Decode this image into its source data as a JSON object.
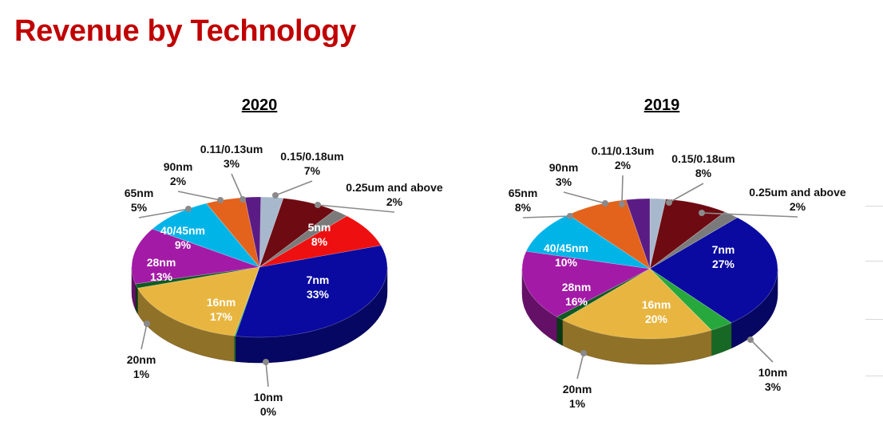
{
  "page_title": "Revenue by Technology",
  "colors": {
    "title": "#c00000",
    "0.11/0.13um": "#a7b8cc",
    "0.15/0.18um": "#6e0a12",
    "0.25um and above": "#7a7a7a",
    "5nm": "#ee1010",
    "7nm": "#0a0aa0",
    "10nm": "#27a83c",
    "16nm": "#e8b640",
    "20nm": "#0e5a22",
    "28nm": "#a31aa6",
    "40/45nm": "#00b4e8",
    "65nm": "#e3621c",
    "90nm": "#5a1c84"
  },
  "chart_data": [
    {
      "type": "pie",
      "title": "2020",
      "slices": [
        {
          "label": "0.11/0.13um",
          "value": 3
        },
        {
          "label": "0.15/0.18um",
          "value": 7
        },
        {
          "label": "0.25um and above",
          "value": 2
        },
        {
          "label": "5nm",
          "value": 8
        },
        {
          "label": "7nm",
          "value": 33
        },
        {
          "label": "10nm",
          "value": 0
        },
        {
          "label": "16nm",
          "value": 17
        },
        {
          "label": "20nm",
          "value": 1
        },
        {
          "label": "28nm",
          "value": 13
        },
        {
          "label": "40/45nm",
          "value": 9
        },
        {
          "label": "65nm",
          "value": 5
        },
        {
          "label": "90nm",
          "value": 2
        }
      ]
    },
    {
      "type": "pie",
      "title": "2019",
      "slices": [
        {
          "label": "0.11/0.13um",
          "value": 2
        },
        {
          "label": "0.15/0.18um",
          "value": 8
        },
        {
          "label": "0.25um and above",
          "value": 2
        },
        {
          "label": "7nm",
          "value": 27
        },
        {
          "label": "10nm",
          "value": 3
        },
        {
          "label": "16nm",
          "value": 20
        },
        {
          "label": "20nm",
          "value": 1
        },
        {
          "label": "28nm",
          "value": 16
        },
        {
          "label": "40/45nm",
          "value": 10
        },
        {
          "label": "65nm",
          "value": 8
        },
        {
          "label": "90nm",
          "value": 3
        }
      ]
    }
  ]
}
